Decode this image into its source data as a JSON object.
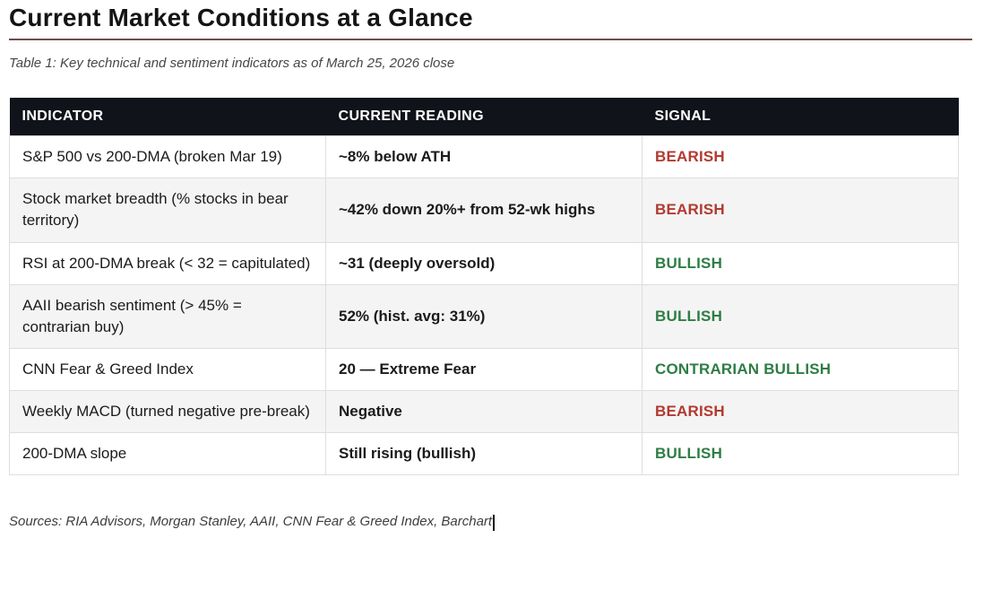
{
  "page": {
    "title": "Current Market Conditions at a Glance",
    "caption": "Table 1: Key technical and sentiment indicators as of March 25, 2026 close",
    "sources": "Sources: RIA Advisors, Morgan Stanley, AAII, CNN Fear & Greed Index, Barchart"
  },
  "colors": {
    "bearish": "#b23a30",
    "bullish": "#2e7d44",
    "header_bg": "#10131a",
    "row_alt_bg": "#f4f4f4",
    "title_rule": "#734b4b"
  },
  "table": {
    "columns": [
      "INDICATOR",
      "CURRENT READING",
      "SIGNAL"
    ],
    "rows": [
      {
        "indicator": "S&P 500 vs 200-DMA (broken Mar 19)",
        "reading": "~8% below ATH",
        "signal": "BEARISH",
        "signal_type": "bearish"
      },
      {
        "indicator": "Stock market breadth (% stocks in bear territory)",
        "reading": "~42% down 20%+ from 52-wk highs",
        "signal": "BEARISH",
        "signal_type": "bearish"
      },
      {
        "indicator": "RSI at 200-DMA break (< 32 = capitulated)",
        "reading": "~31 (deeply oversold)",
        "signal": "BULLISH",
        "signal_type": "bullish"
      },
      {
        "indicator": "AAII bearish sentiment (> 45% = contrarian buy)",
        "reading": "52% (hist. avg: 31%)",
        "signal": "BULLISH",
        "signal_type": "bullish"
      },
      {
        "indicator": "CNN Fear & Greed Index",
        "reading": "20 — Extreme Fear",
        "signal": "CONTRARIAN BULLISH",
        "signal_type": "bullish"
      },
      {
        "indicator": "Weekly MACD (turned negative pre-break)",
        "reading": "Negative",
        "signal": "BEARISH",
        "signal_type": "bearish"
      },
      {
        "indicator": "200-DMA slope",
        "reading": "Still rising (bullish)",
        "signal": "BULLISH",
        "signal_type": "bullish"
      }
    ]
  }
}
